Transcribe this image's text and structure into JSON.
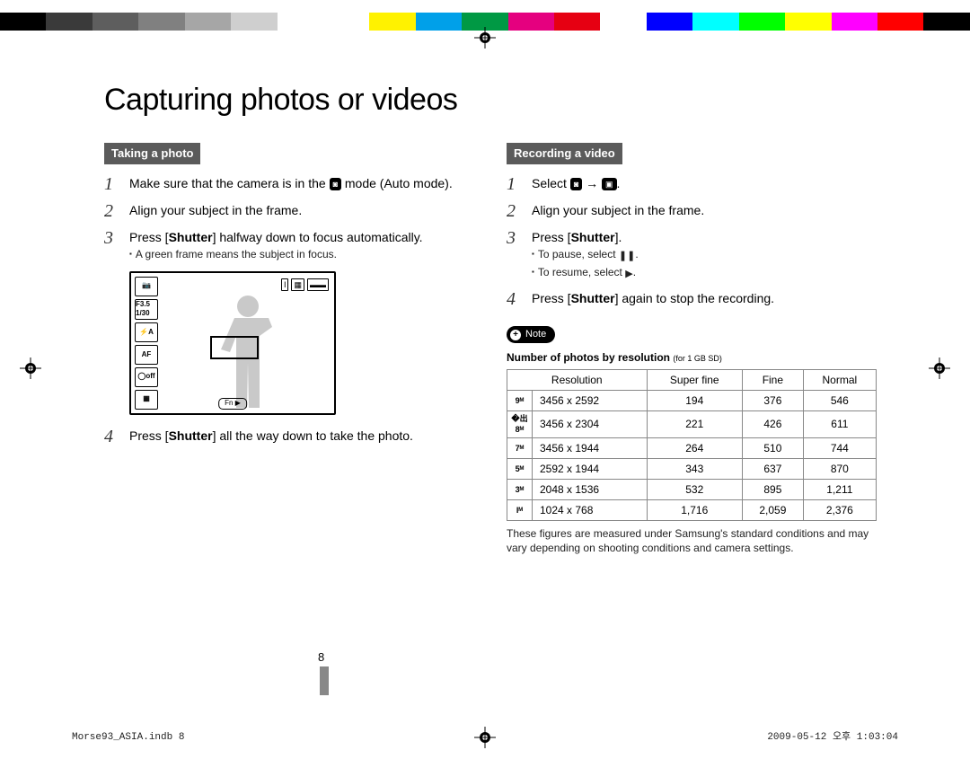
{
  "color_bar": [
    "#000000",
    "#3a3a3a",
    "#5e5e5e",
    "#808080",
    "#a6a6a6",
    "#cfcfcf",
    "#ffffff",
    "#ffffff",
    "#fff200",
    "#00a0e9",
    "#009944",
    "#e5007f",
    "#e60012",
    "#ffffff",
    "#0000ff",
    "#00ffff",
    "#00ff00",
    "#ffff00",
    "#ff00ff",
    "#ff0000",
    "#000000"
  ],
  "title": "Capturing photos or videos",
  "left": {
    "heading": "Taking a photo",
    "steps": [
      {
        "n": "1",
        "pre": "Make sure that the camera is in the ",
        "icon": "📷",
        "post": " mode (Auto mode)."
      },
      {
        "n": "2",
        "text": "Align your subject in the frame."
      },
      {
        "n": "3",
        "pre": "Press [",
        "bold": "Shutter",
        "post": "] halfway down to focus automatically.",
        "sub": "A green frame means the subject in focus."
      },
      {
        "n": "4",
        "pre": "Press [",
        "bold": "Shutter",
        "post": "] all the way down to take the photo."
      }
    ],
    "lcd_icons": [
      "📷",
      "F3.5 1/30",
      "⚡A",
      "AF",
      "◯off",
      "▦"
    ],
    "lcd_bot": "Fn ▶"
  },
  "right": {
    "heading": "Recording a video",
    "steps": [
      {
        "n": "1",
        "pre": "Select ",
        "icon1": "📷",
        "arrow": " → ",
        "icon2": "🎬",
        "post": "."
      },
      {
        "n": "2",
        "text": "Align your subject in the frame."
      },
      {
        "n": "3",
        "pre": "Press [",
        "bold": "Shutter",
        "post": "].",
        "subs": [
          {
            "pre": "To pause, select ",
            "sym": "❚❚",
            "post": "."
          },
          {
            "pre": "To resume, select ",
            "sym": "▶",
            "post": "."
          }
        ]
      },
      {
        "n": "4",
        "pre": "Press [",
        "bold": "Shutter",
        "post": "] again to stop the recording."
      }
    ],
    "note_label": "Note",
    "note_title": "Number of photos by resolution ",
    "note_sub": "(for 1 GB SD)",
    "table": {
      "headers": [
        "Resolution",
        "Super fine",
        "Fine",
        "Normal"
      ],
      "rows": [
        {
          "icon": "9ᴹ",
          "res": "3456 x 2592",
          "sf": "194",
          "f": "376",
          "n": "546"
        },
        {
          "icon": "�出8ᴹ",
          "res": "3456 x 2304",
          "sf": "221",
          "f": "426",
          "n": "611"
        },
        {
          "icon": "7ᴹ",
          "res": "3456 x 1944",
          "sf": "264",
          "f": "510",
          "n": "744"
        },
        {
          "icon": "5ᴹ",
          "res": "2592 x 1944",
          "sf": "343",
          "f": "637",
          "n": "870"
        },
        {
          "icon": "3ᴹ",
          "res": "2048 x 1536",
          "sf": "532",
          "f": "895",
          "n": "1,211"
        },
        {
          "icon": "Iᴹ",
          "res": "1024 x 768",
          "sf": "1,716",
          "f": "2,059",
          "n": "2,376"
        }
      ]
    },
    "table_footer": "These figures are measured under Samsung's standard conditions and may vary depending on shooting conditions and camera settings."
  },
  "page_number": "8",
  "footer_left": "Morse93_ASIA.indb   8",
  "footer_right": "2009-05-12   오후 1:03:04"
}
